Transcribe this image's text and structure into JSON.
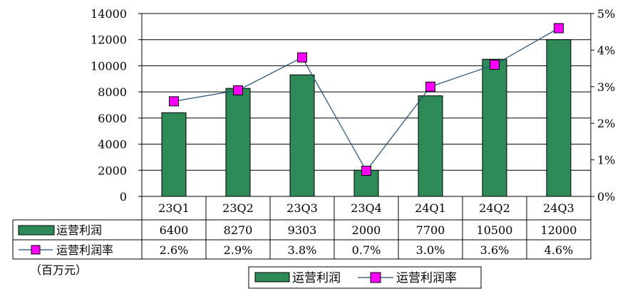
{
  "chart_data": {
    "type": "bar+line",
    "unit_label": "（百万元）",
    "categories": [
      "23Q1",
      "23Q2",
      "23Q3",
      "23Q4",
      "24Q1",
      "24Q2",
      "24Q3"
    ],
    "series": [
      {
        "name": "运营利润",
        "kind": "bar",
        "axis": "left",
        "color": "#2e8b57",
        "values": [
          6400,
          8270,
          9303,
          2000,
          7700,
          10500,
          12000
        ],
        "labels": [
          "6400",
          "8270",
          "9303",
          "2000",
          "7700",
          "10500",
          "12000"
        ]
      },
      {
        "name": "运营利润率",
        "kind": "line",
        "axis": "right",
        "line_color": "#1f4e79",
        "marker_color": "#ff00ff",
        "values": [
          2.6,
          2.9,
          3.8,
          0.7,
          3.0,
          3.6,
          4.6
        ],
        "labels": [
          "2.6%",
          "2.9%",
          "3.8%",
          "0.7%",
          "3.0%",
          "3.6%",
          "4.6%"
        ]
      }
    ],
    "y_left": {
      "min": 0,
      "max": 14000,
      "ticks": [
        "0",
        "2000",
        "4000",
        "6000",
        "8000",
        "10000",
        "12000",
        "14000"
      ]
    },
    "y_right": {
      "min": 0,
      "max": 5,
      "ticks": [
        "0%",
        "1%",
        "2%",
        "3%",
        "4%",
        "5%"
      ]
    },
    "grid": true,
    "data_table": true,
    "legend": {
      "position": "bottom-center",
      "items": [
        "运营利润",
        "运营利润率"
      ]
    }
  }
}
